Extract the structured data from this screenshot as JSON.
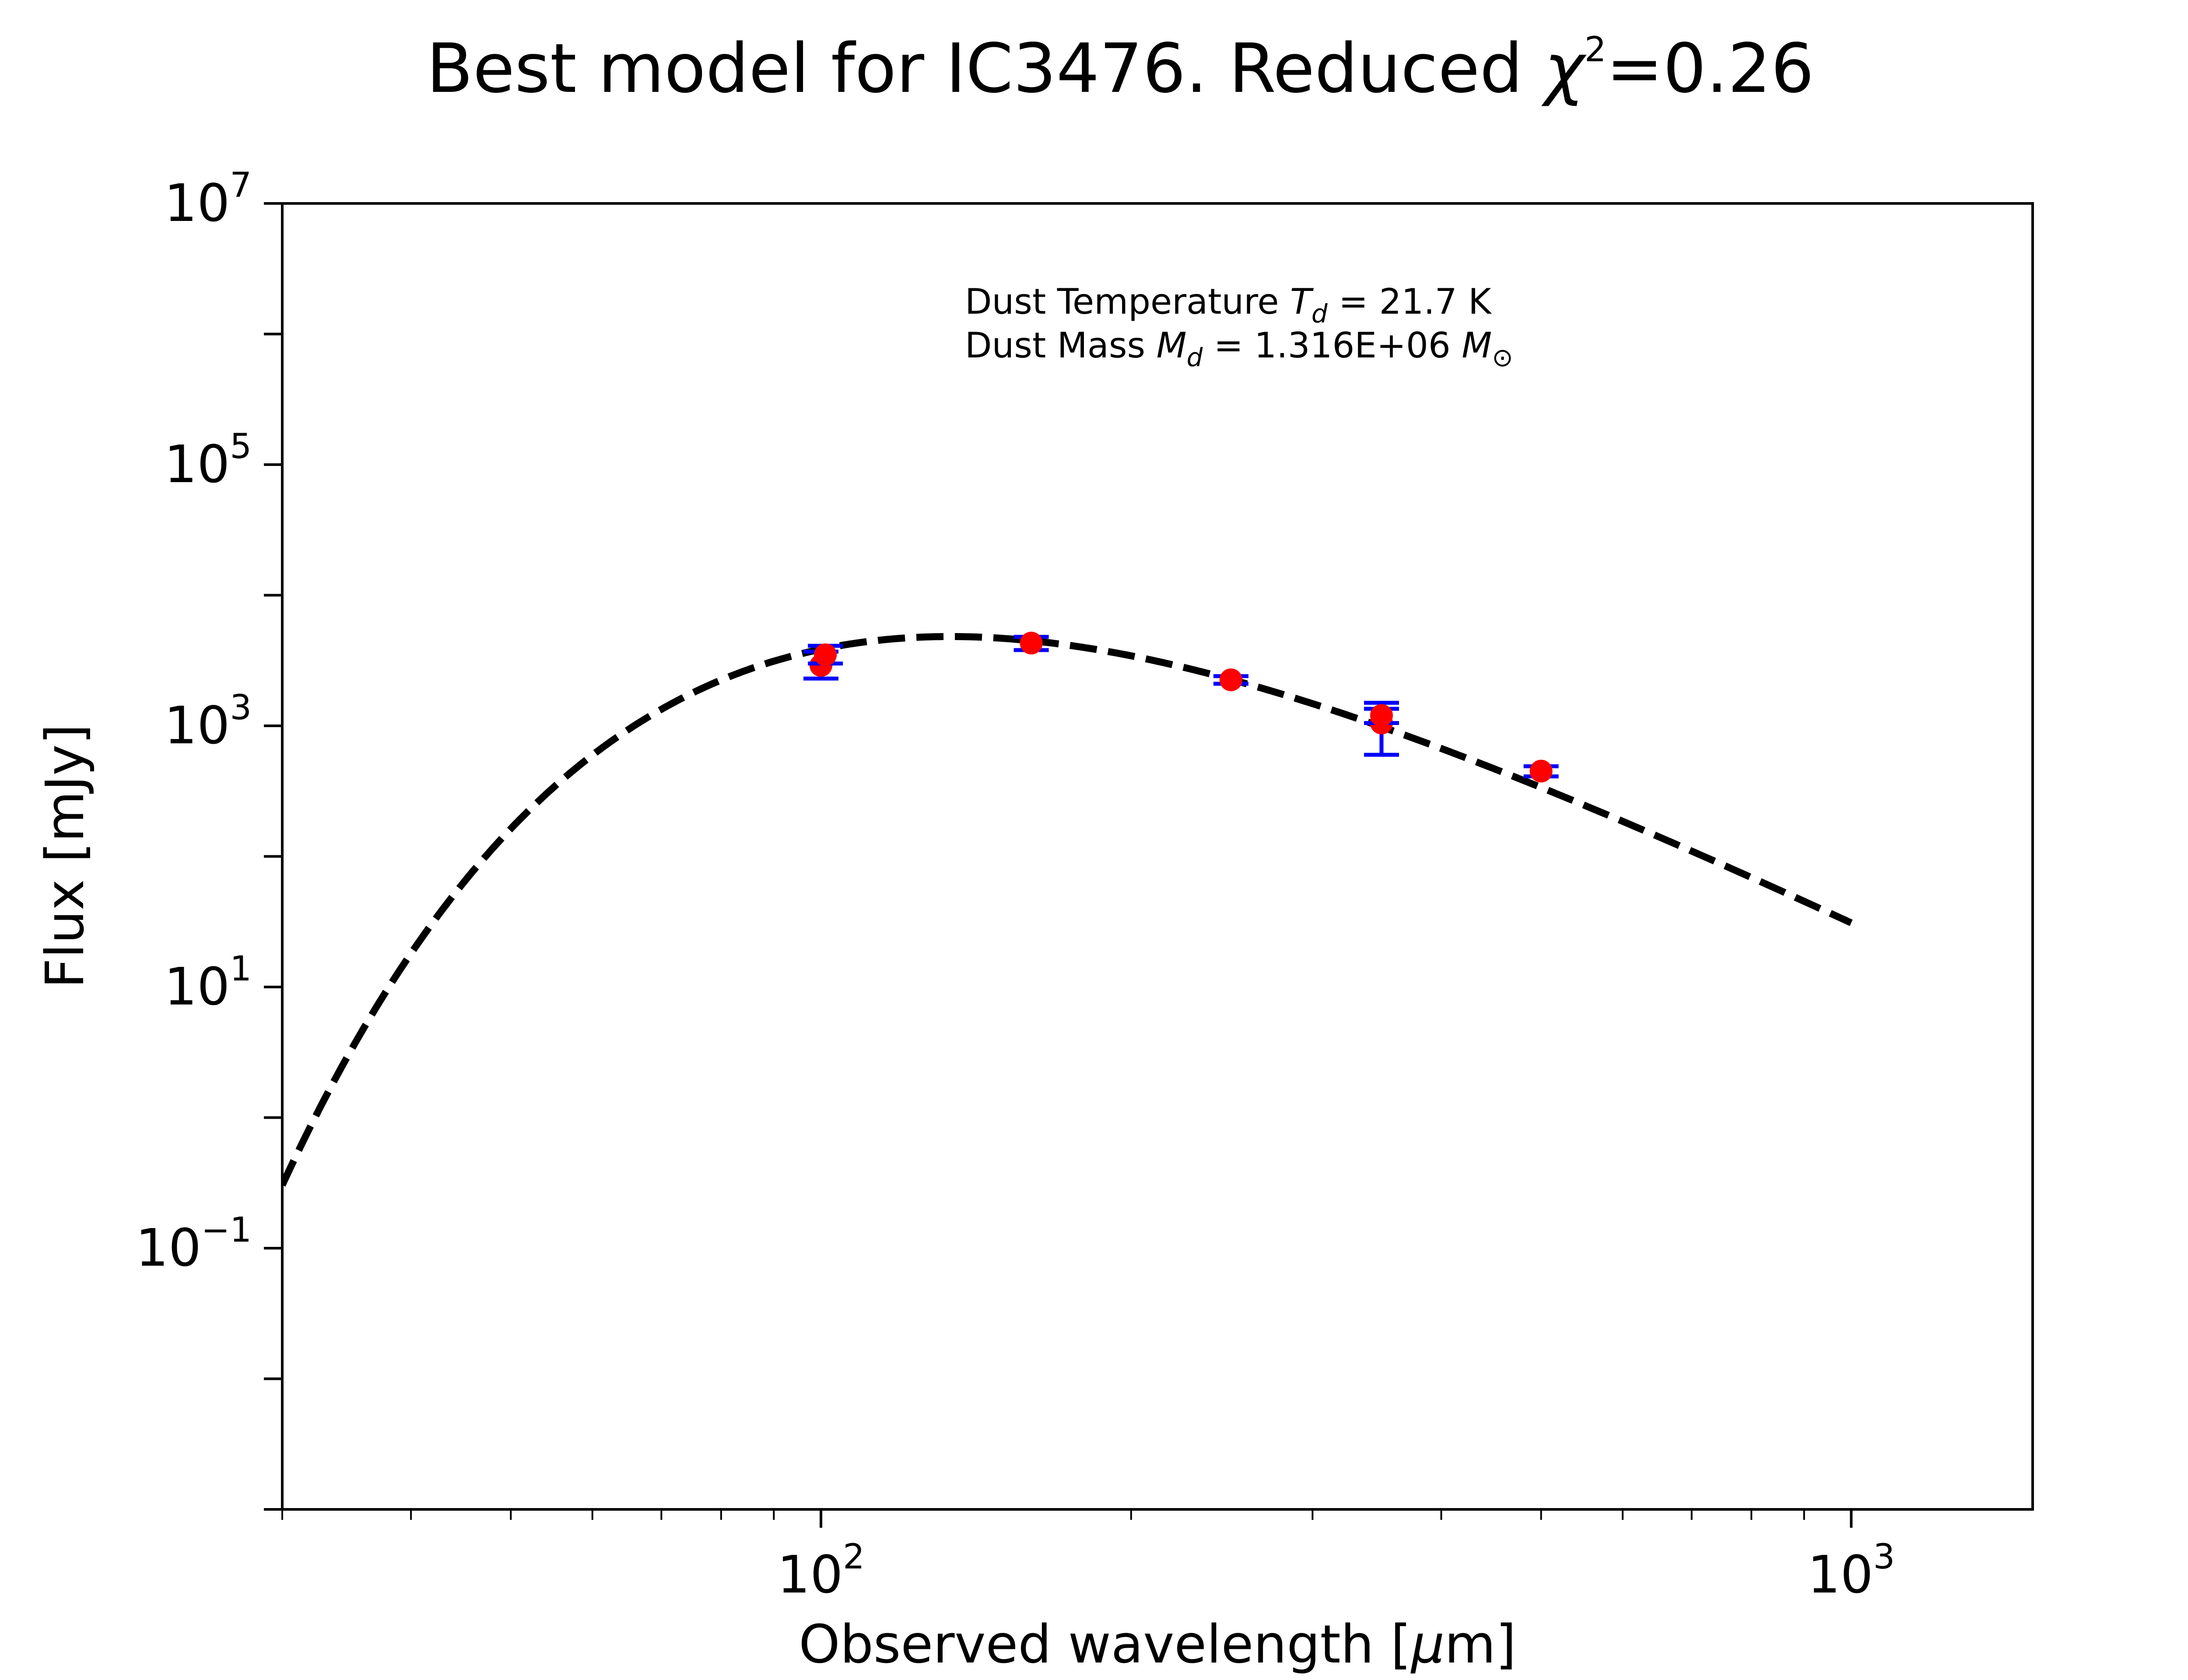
{
  "chart_data": {
    "type": "line",
    "title": "Best model for IC3476. Reduced χ²=0.26",
    "title_parts": {
      "prefix": "Best model for IC3476. Reduced ",
      "chi": "χ",
      "sup": "2",
      "suffix": "=0.26"
    },
    "xlabel": "Observed wavelength [μm]",
    "xlabel_parts": {
      "prefix": "Observed wavelength [",
      "mu": "μ",
      "suffix": "m]"
    },
    "ylabel": "Flux [mJy]",
    "x_scale": "log",
    "y_scale": "log",
    "xlim": [
      30,
      1500
    ],
    "ylim": [
      0.001,
      10000000
    ],
    "grid": false,
    "x_ticks": [
      {
        "base": "10",
        "exp": "2",
        "value": 100
      },
      {
        "base": "10",
        "exp": "3",
        "value": 1000
      }
    ],
    "y_ticks": [
      {
        "base": "10",
        "exp": "7",
        "value": 10000000
      },
      {
        "base": "10",
        "exp": "5",
        "value": 100000
      },
      {
        "base": "10",
        "exp": "3",
        "value": 1000
      },
      {
        "base": "10",
        "exp": "1",
        "value": 10
      },
      {
        "base": "10",
        "exp": "−1",
        "value": 0.1
      }
    ],
    "annotation": {
      "line1": {
        "prefix": "Dust Temperature ",
        "sym": "T",
        "sub": "d",
        "suffix": " = 21.7 K"
      },
      "line2": {
        "prefix": "Dust Mass ",
        "sym": "M",
        "sub": "d",
        "mid": " = 1.316E+06 ",
        "unit": "M",
        "unit_sub": "⊙"
      }
    },
    "model": {
      "name": "",
      "style": "dashed",
      "color": "#000000",
      "temperature_K": 21.7,
      "beta": 2,
      "x_range": [
        30,
        1000
      ],
      "peak": {
        "x": 140,
        "y": 4800
      }
    },
    "observations": {
      "name": "",
      "marker_color": "#ff0000",
      "errorbar_color": "#0000ff",
      "points": [
        {
          "x": 100,
          "y": 2900,
          "yerr": [
            2300,
            3700
          ]
        },
        {
          "x": 101,
          "y": 3500,
          "yerr": [
            3000,
            4100
          ]
        },
        {
          "x": 160,
          "y": 4300,
          "yerr": [
            3800,
            4800
          ]
        },
        {
          "x": 250,
          "y": 2250,
          "yerr": [
            2100,
            2400
          ]
        },
        {
          "x": 350,
          "y": 1050,
          "yerr": [
            600,
            1500
          ]
        },
        {
          "x": 350,
          "y": 1200,
          "yerr": [
            1050,
            1350
          ]
        },
        {
          "x": 500,
          "y": 450,
          "yerr": [
            410,
            490
          ]
        }
      ]
    }
  }
}
